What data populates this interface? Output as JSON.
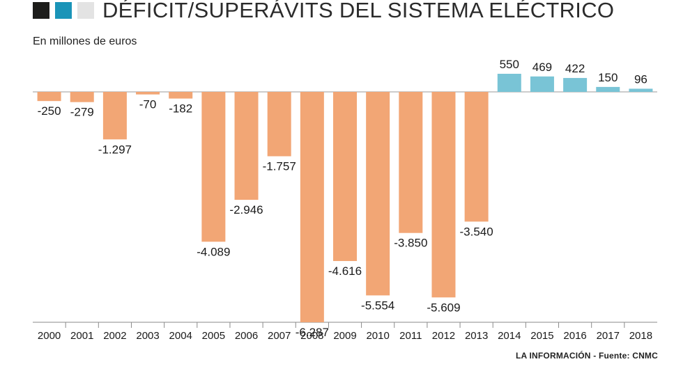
{
  "header": {
    "title": "DÉFICIT/SUPERÁVITS DEL SISTEMA ELÉCTRICO",
    "subtitle": "En millones de euros"
  },
  "footer": {
    "source": "LA INFORMACIÓN - Fuente: CNMC"
  },
  "colors": {
    "deficit": "#f2a675",
    "surplus": "#79c4d6",
    "square_dark": "#1d1d1b",
    "square_blue": "#1a94b8",
    "square_light": "#e3e3e3"
  },
  "chart_data": {
    "type": "bar",
    "title": "DÉFICIT/SUPERÁVITS DEL SISTEMA ELÉCTRICO",
    "ylabel": "En millones de euros",
    "xlabel": "",
    "categories": [
      "2000",
      "2001",
      "2002",
      "2003",
      "2004",
      "2005",
      "2006",
      "2007",
      "2008",
      "2009",
      "2010",
      "2011",
      "2012",
      "2013",
      "2014",
      "2015",
      "2016",
      "2017",
      "2018"
    ],
    "values": [
      -250,
      -279,
      -1297,
      -70,
      -182,
      -4089,
      -2946,
      -1757,
      -6287,
      -4616,
      -5554,
      -3850,
      -5609,
      -3540,
      550,
      469,
      422,
      150,
      96
    ],
    "value_labels": [
      "-250",
      "-279",
      "-1.297",
      "-70",
      "-182",
      "-4.089",
      "-2.946",
      "-1.757",
      "-6.287",
      "-4.616",
      "-5.554",
      "-3.850",
      "-5.609",
      "-3.540",
      "550",
      "469",
      "422",
      "150",
      "96"
    ],
    "ylim": [
      -6287,
      550
    ],
    "grid": false,
    "legend": "none"
  }
}
